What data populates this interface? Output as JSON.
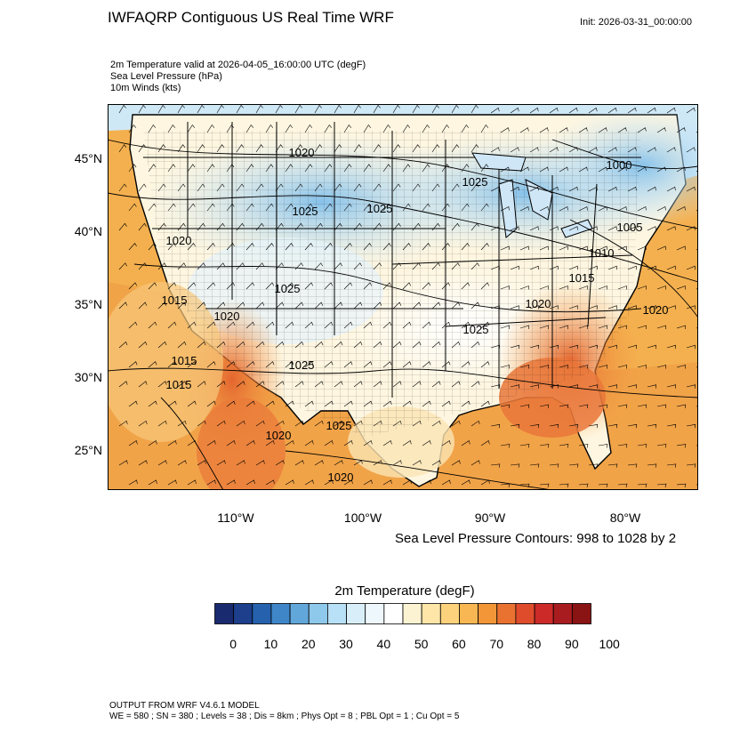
{
  "header": {
    "title": "IWFAQRP Contiguous US Real Time WRF",
    "init": "Init: 2026-03-31_00:00:00"
  },
  "fields": [
    "2m Temperature valid at 2026-04-05_16:00:00 UTC   (degF)",
    "Sea Level Pressure   (hPa)",
    "10m Winds   (kts)"
  ],
  "map": {
    "lat_labels": [
      "45°N",
      "40°N",
      "35°N",
      "30°N",
      "25°N"
    ],
    "lon_labels": [
      "110°W",
      "100°W",
      "90°W",
      "80°W"
    ],
    "isobar_labels": [
      "1020",
      "1025",
      "1025",
      "1025",
      "1000",
      "1005",
      "1010",
      "1015",
      "1020",
      "1025",
      "1020",
      "1020",
      "1025",
      "1015",
      "1015",
      "1025",
      "1020",
      "1025",
      "1020",
      "1020",
      "1015"
    ],
    "colors": {
      "ocean_warm": "#f4b04f",
      "land_hot": "#e9773a",
      "cold": "#a8d4f0"
    }
  },
  "contour_note": "Sea Level Pressure Contours: 998 to 1028 by 2",
  "colorbar": {
    "title": "2m Temperature  (degF)",
    "ticks": [
      "0",
      "10",
      "20",
      "30",
      "40",
      "50",
      "60",
      "70",
      "80",
      "90",
      "100"
    ],
    "colors": [
      "#1a2a6e",
      "#1d3f8c",
      "#2661ae",
      "#3f86c8",
      "#62a7da",
      "#8ec8ea",
      "#b8e0f6",
      "#d8effa",
      "#eef8fc",
      "#ffffff",
      "#fbf3d2",
      "#fde6a8",
      "#fcd27d",
      "#f9b753",
      "#f29638",
      "#ea7231",
      "#df4c2c",
      "#cb2a28",
      "#a81c1f",
      "#8a1313"
    ]
  },
  "footer": {
    "line1": "OUTPUT FROM WRF V4.6.1 MODEL",
    "line2": "WE = 580 ; SN = 380 ; Levels = 38 ; Dis = 8km ; Phys Opt = 8 ; PBL Opt = 1 ; Cu Opt = 5"
  }
}
